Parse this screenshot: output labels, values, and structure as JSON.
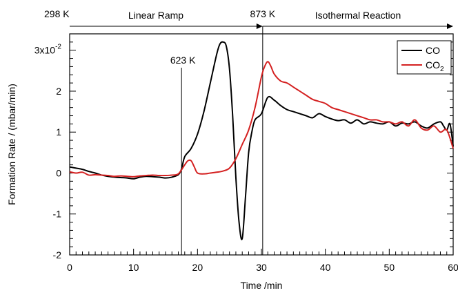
{
  "chart_data": {
    "type": "line",
    "xlabel": "Time /min",
    "ylabel": "Formation Rate / (mbar/min)",
    "xlim": [
      0,
      60
    ],
    "ylim": [
      -2.0,
      3.4
    ],
    "x_ticks": [
      0,
      10,
      20,
      30,
      40,
      50,
      60
    ],
    "x_tick_labels": [
      "0",
      "10",
      "20",
      "30",
      "40",
      "50",
      "60"
    ],
    "y_ticks": [
      -2,
      -1,
      0,
      1,
      2,
      3
    ],
    "y_tick_labels": [
      "-2",
      "-1",
      "0",
      "1",
      "2",
      "3x10"
    ],
    "y_exponent": "-2",
    "legend": {
      "position": "top-right",
      "entries": [
        {
          "label": "CO",
          "subscript": "",
          "color": "#000000"
        },
        {
          "label": "CO",
          "subscript": "2",
          "color": "#d42020"
        }
      ]
    },
    "annotations": {
      "temp_start": "298 K",
      "temp_end": "873 K",
      "temp_mid": "623 K",
      "phase1": "Linear Ramp",
      "phase2": "Isothermal Reaction"
    },
    "markers_x": [
      17.5,
      30.2
    ],
    "phase_boundary_x": 30.2,
    "series": [
      {
        "name": "CO",
        "color": "#000000",
        "x": [
          0,
          1,
          2,
          3,
          4,
          5,
          6,
          7,
          8,
          9,
          10,
          11,
          12,
          13,
          14,
          15,
          16,
          17,
          17.5,
          18,
          19,
          20,
          21,
          22,
          23,
          23.5,
          24,
          24.5,
          25,
          25.5,
          26,
          26.5,
          27,
          27.5,
          28,
          28.5,
          29,
          30,
          31,
          32,
          33,
          34,
          35,
          36,
          37,
          38,
          39,
          40,
          41,
          42,
          43,
          44,
          45,
          46,
          47,
          48,
          49,
          50,
          51,
          52,
          53,
          54,
          55,
          56,
          57,
          58,
          58.5,
          59,
          59.5,
          60
        ],
        "y": [
          0.15,
          0.12,
          0.09,
          0.04,
          0.0,
          -0.05,
          -0.08,
          -0.1,
          -0.11,
          -0.12,
          -0.14,
          -0.1,
          -0.08,
          -0.09,
          -0.1,
          -0.12,
          -0.1,
          -0.04,
          0.1,
          0.4,
          0.6,
          0.95,
          1.5,
          2.2,
          2.9,
          3.15,
          3.2,
          3.1,
          2.55,
          1.4,
          -0.1,
          -1.2,
          -1.6,
          -0.6,
          0.5,
          1.0,
          1.3,
          1.45,
          1.85,
          1.78,
          1.65,
          1.55,
          1.5,
          1.45,
          1.4,
          1.35,
          1.45,
          1.38,
          1.32,
          1.28,
          1.3,
          1.22,
          1.3,
          1.2,
          1.25,
          1.22,
          1.2,
          1.25,
          1.15,
          1.22,
          1.2,
          1.25,
          1.15,
          1.1,
          1.2,
          1.25,
          1.15,
          1.05,
          1.2,
          0.65
        ]
      },
      {
        "name": "CO2",
        "color": "#d42020",
        "x": [
          0,
          1,
          2,
          3,
          4,
          5,
          6,
          7,
          8,
          9,
          10,
          11,
          12,
          13,
          14,
          15,
          16,
          17,
          18,
          18.5,
          19,
          19.5,
          20,
          21,
          22,
          23,
          24,
          25,
          26,
          27,
          28,
          29,
          30,
          30.5,
          31,
          31.5,
          32,
          33,
          34,
          35,
          36,
          37,
          38,
          39,
          40,
          41,
          42,
          43,
          44,
          45,
          46,
          47,
          48,
          49,
          50,
          51,
          52,
          53,
          54,
          55,
          56,
          57,
          58,
          59,
          60
        ],
        "y": [
          0.03,
          0.0,
          0.02,
          -0.05,
          -0.04,
          -0.05,
          -0.06,
          -0.08,
          -0.07,
          -0.08,
          -0.09,
          -0.07,
          -0.06,
          -0.05,
          -0.06,
          -0.06,
          -0.05,
          -0.02,
          0.2,
          0.3,
          0.3,
          0.15,
          0.0,
          -0.02,
          0.0,
          0.02,
          0.05,
          0.12,
          0.35,
          0.7,
          1.05,
          1.6,
          2.35,
          2.6,
          2.72,
          2.6,
          2.42,
          2.25,
          2.2,
          2.1,
          2.0,
          1.9,
          1.8,
          1.75,
          1.7,
          1.6,
          1.55,
          1.5,
          1.45,
          1.4,
          1.35,
          1.3,
          1.3,
          1.25,
          1.25,
          1.2,
          1.25,
          1.15,
          1.3,
          1.1,
          1.05,
          1.15,
          1.0,
          1.05,
          0.6
        ]
      }
    ]
  }
}
